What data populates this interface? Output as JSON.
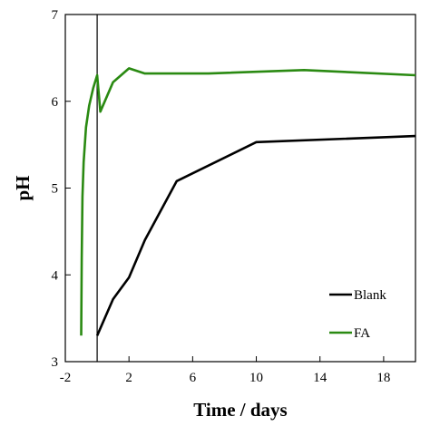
{
  "chart_data": {
    "type": "line",
    "title": "",
    "xlabel": "Time / days",
    "ylabel": "pH",
    "xlim": [
      -2,
      20
    ],
    "ylim": [
      3,
      7
    ],
    "x_ticks": [
      -2,
      2,
      6,
      10,
      14,
      18
    ],
    "y_ticks": [
      3,
      4,
      5,
      6,
      7
    ],
    "grid": false,
    "reference_line_x": 0,
    "legend_position": "bottom-right",
    "series": [
      {
        "name": "Blank",
        "color": "#000000",
        "x": [
          0,
          1,
          2,
          3,
          5,
          10,
          20
        ],
        "y": [
          3.3,
          3.72,
          3.97,
          4.4,
          5.08,
          5.53,
          5.6
        ]
      },
      {
        "name": "FA",
        "color": "#2a8a12",
        "x": [
          -1,
          -0.97,
          -0.92,
          -0.85,
          -0.7,
          -0.5,
          -0.25,
          0,
          0.2,
          1,
          2,
          3,
          7,
          13,
          20
        ],
        "y": [
          3.3,
          4.2,
          4.9,
          5.3,
          5.7,
          5.95,
          6.15,
          6.3,
          5.88,
          6.22,
          6.38,
          6.32,
          6.32,
          6.36,
          6.3
        ]
      }
    ]
  }
}
